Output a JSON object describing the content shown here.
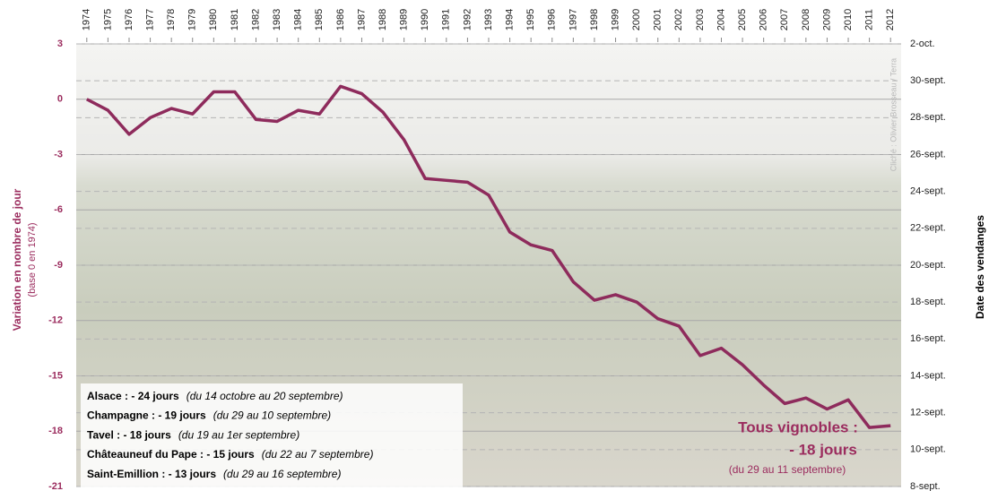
{
  "chart_data": {
    "type": "line",
    "y_label": "Variation en nombre de jour",
    "y_label_sub": "(base 0 en 1974)",
    "y2_label": "Date des vendanges",
    "credit": "Cliché : Olivier Brosseau / Terra",
    "x": [
      1974,
      1975,
      1976,
      1977,
      1978,
      1979,
      1980,
      1981,
      1982,
      1983,
      1984,
      1985,
      1986,
      1987,
      1988,
      1989,
      1990,
      1991,
      1992,
      1993,
      1994,
      1995,
      1996,
      1997,
      1998,
      1999,
      2000,
      2001,
      2002,
      2003,
      2004,
      2005,
      2006,
      2007,
      2008,
      2009,
      2010,
      2011,
      2012
    ],
    "xlim": [
      1973.5,
      2012.5
    ],
    "xticks": [
      1974,
      1975,
      1976,
      1977,
      1978,
      1979,
      1980,
      1981,
      1982,
      1983,
      1984,
      1985,
      1986,
      1987,
      1988,
      1989,
      1990,
      1991,
      1992,
      1993,
      1994,
      1995,
      1996,
      1997,
      1998,
      1999,
      2000,
      2001,
      2002,
      2003,
      2004,
      2005,
      2006,
      2007,
      2008,
      2009,
      2010,
      2011,
      2012
    ],
    "series": [
      {
        "color": "#8e2b5c",
        "values": [
          0,
          -0.6,
          -1.9,
          -1.0,
          -0.5,
          -0.8,
          0.4,
          0.4,
          -1.1,
          -1.2,
          -0.6,
          -0.8,
          0.7,
          0.3,
          -0.7,
          -2.2,
          -4.3,
          -4.4,
          -4.5,
          -5.2,
          -7.2,
          -7.9,
          -8.2,
          -9.9,
          -10.9,
          -10.6,
          -11.0,
          -11.9,
          -12.3,
          -13.9,
          -13.5,
          -14.4,
          -15.5,
          -16.5,
          -16.2,
          -16.8,
          -16.3,
          -17.8,
          -17.7
        ]
      }
    ],
    "ylim": [
      -21,
      3
    ],
    "yticks": [
      3,
      0,
      -3,
      -6,
      -9,
      -12,
      -15,
      -18,
      -21
    ],
    "y2lim": [
      -21,
      3
    ],
    "y2ticks": [
      {
        "value": 3,
        "label": "2-oct."
      },
      {
        "value": 1,
        "label": "30-sept."
      },
      {
        "value": -1,
        "label": "28-sept."
      },
      {
        "value": -3,
        "label": "26-sept."
      },
      {
        "value": -5,
        "label": "24-sept."
      },
      {
        "value": -7,
        "label": "22-sept."
      },
      {
        "value": -9,
        "label": "20-sept."
      },
      {
        "value": -11,
        "label": "18-sept."
      },
      {
        "value": -13,
        "label": "16-sept."
      },
      {
        "value": -15,
        "label": "14-sept."
      },
      {
        "value": -17,
        "label": "12-sept."
      },
      {
        "value": -19,
        "label": "10-sept."
      },
      {
        "value": -21,
        "label": "8-sept."
      }
    ],
    "grid": true,
    "legend_box": [
      {
        "name": "Alsace : - 24 jours",
        "detail": "(du 14 octobre au 20 septembre)"
      },
      {
        "name": "Champagne : - 19 jours",
        "detail": "(du 29 au 10 septembre)"
      },
      {
        "name": "Tavel : - 18 jours",
        "detail": "(du 19 au 1er septembre)"
      },
      {
        "name": "Châteauneuf du Pape : - 15 jours",
        "detail": "(du 22 au 7 septembre)"
      },
      {
        "name": "Saint-Emillion : - 13 jours",
        "detail": "(du 29 au 16 septembre)"
      }
    ],
    "annotation": {
      "line1": "Tous vignobles :",
      "line2": "- 18 jours",
      "detail": "(du 29 au 11 septembre)"
    }
  }
}
